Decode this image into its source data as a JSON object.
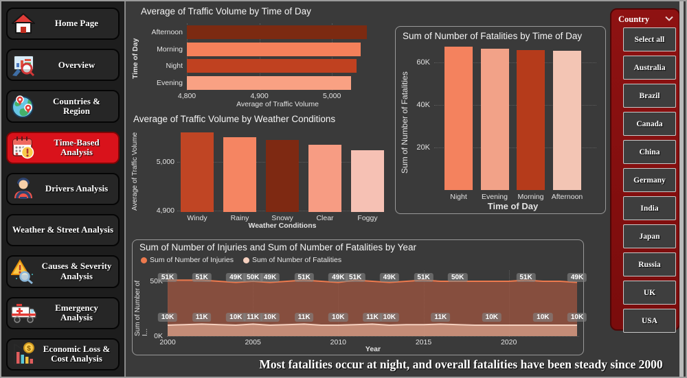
{
  "sidebar": {
    "items": [
      {
        "label": "Home Page",
        "icon": "home-icon",
        "active": false
      },
      {
        "label": "Overview",
        "icon": "overview-icon",
        "active": false
      },
      {
        "label": "Countries & Region",
        "icon": "globe-icon",
        "active": false
      },
      {
        "label": "Time-Based Analysis",
        "icon": "calendar-alert-icon",
        "active": true
      },
      {
        "label": "Drivers Analysis",
        "icon": "driver-icon",
        "active": false
      },
      {
        "label": "Weather & Street Analysis",
        "icon": null,
        "active": false
      },
      {
        "label": "Causes & Severity Analysis",
        "icon": "warning-search-icon",
        "active": false
      },
      {
        "label": "Emergency Analysis",
        "icon": "ambulance-icon",
        "active": false
      },
      {
        "label": "Economic Loss & Cost Analysis",
        "icon": "economic-icon",
        "active": false
      }
    ]
  },
  "slicer": {
    "header": "Country",
    "chevron_icon": "chevron-down-icon",
    "items": [
      "Select all",
      "Australia",
      "Brazil",
      "Canada",
      "China",
      "Germany",
      "India",
      "Japan",
      "Russia",
      "UK",
      "USA"
    ]
  },
  "annotation": "Most fatalities occur at night, and overall fatalities have been steady since 2000",
  "colors": {
    "active_nav": "#d9121b",
    "slicer_panel": "#7d0d0d",
    "panel_bg": "#3a3a3a",
    "sidebar_bg": "#1d1d1d"
  },
  "chart_data": [
    {
      "id": "traffic-by-time",
      "type": "bar",
      "orientation": "horizontal",
      "title": "Average of Traffic Volume by Time of Day",
      "categories": [
        "Afternoon",
        "Morning",
        "Night",
        "Evening"
      ],
      "values": [
        5048,
        5040,
        5034,
        5026
      ],
      "bar_colors": [
        "#7c2a11",
        "#f5805a",
        "#c04120",
        "#f9a183"
      ],
      "xlabel": "Average of Traffic Volume",
      "ylabel": "Time of Day",
      "xlim": [
        4800,
        5050
      ],
      "xticks": [
        4800,
        4900,
        5000
      ],
      "xtick_labels": [
        "4,800",
        "4,900",
        "5,000"
      ],
      "grid": true
    },
    {
      "id": "traffic-by-weather",
      "type": "bar",
      "orientation": "vertical",
      "title": "Average of Traffic Volume by Weather Conditions",
      "categories": [
        "Windy",
        "Rainy",
        "Snowy",
        "Clear",
        "Foggy"
      ],
      "values": [
        5060,
        5051,
        5045,
        5035,
        5024
      ],
      "bar_colors": [
        "#c04524",
        "#f58562",
        "#7e2912",
        "#f79c83",
        "#f6c1b4"
      ],
      "xlabel": "Weather Conditions",
      "ylabel": "Average of Traffic Volume",
      "ylim": [
        4897,
        5070
      ],
      "yticks": [
        4900,
        5000
      ],
      "ytick_labels": [
        "4,900",
        "5,000"
      ],
      "grid": true
    },
    {
      "id": "fatalities-by-time",
      "type": "bar",
      "orientation": "vertical",
      "title": "Sum of Number of Fatalities by Time of Day",
      "categories": [
        "Night",
        "Evening",
        "Morning",
        "Afternoon"
      ],
      "values": [
        67500,
        66300,
        65700,
        65400
      ],
      "bar_colors": [
        "#f4825e",
        "#f2a288",
        "#b53b1b",
        "#f3c5b4"
      ],
      "xlabel": "Time of Day",
      "ylabel": "Sum of Number of Fatalities",
      "ylim": [
        0,
        70000
      ],
      "yticks": [
        20000,
        40000,
        60000
      ],
      "ytick_labels": [
        "20K",
        "40K",
        "60K"
      ],
      "grid": true
    },
    {
      "id": "injuries-fatalities-by-year",
      "type": "area",
      "title": "Sum of Number of Injuries and Sum of Number of Fatalities by Year",
      "xlabel": "Year",
      "ylabel": "Sum of Number of I...",
      "x_start": 2000,
      "x_end": 2024,
      "xticks": [
        2000,
        2005,
        2010,
        2015,
        2020
      ],
      "ylim_k": [
        0,
        55
      ],
      "yticks_k": [
        0,
        50
      ],
      "ytick_labels": [
        "0K",
        "50K"
      ],
      "legend_position": "top",
      "series": [
        {
          "name": "Sum of Number of Injuries",
          "line_color": "#ed7a4e",
          "fill_color": "#a05540",
          "values_k": [
            51,
            51,
            51,
            50,
            49,
            50,
            49,
            50,
            51,
            50,
            49,
            51,
            50,
            49,
            50,
            51,
            50,
            50,
            50,
            50,
            50,
            51,
            50,
            50,
            49
          ],
          "point_labels": [
            {
              "year": 2000,
              "text": "51K"
            },
            {
              "year": 2002,
              "text": "51K"
            },
            {
              "year": 2004,
              "text": "49K"
            },
            {
              "year": 2005,
              "text": "50K"
            },
            {
              "year": 2006,
              "text": "49K"
            },
            {
              "year": 2008,
              "text": "51K"
            },
            {
              "year": 2010,
              "text": "49K"
            },
            {
              "year": 2011,
              "text": "51K"
            },
            {
              "year": 2013,
              "text": "49K"
            },
            {
              "year": 2015,
              "text": "51K"
            },
            {
              "year": 2017,
              "text": "50K"
            },
            {
              "year": 2021,
              "text": "51K"
            },
            {
              "year": 2024,
              "text": "49K"
            }
          ]
        },
        {
          "name": "Sum of Number of Fatalities",
          "line_color": "#f6d0bf",
          "fill_color": "#d8a18b",
          "values_k": [
            10,
            10.5,
            11,
            10.5,
            10,
            11,
            10,
            10.5,
            11,
            10,
            10,
            10.5,
            11,
            10,
            10.5,
            10.5,
            11,
            10.5,
            10,
            10,
            10,
            10,
            10,
            10,
            10
          ],
          "point_labels": [
            {
              "year": 2000,
              "text": "10K"
            },
            {
              "year": 2002,
              "text": "11K"
            },
            {
              "year": 2004,
              "text": "10K"
            },
            {
              "year": 2005,
              "text": "11K"
            },
            {
              "year": 2006,
              "text": "10K"
            },
            {
              "year": 2008,
              "text": "11K"
            },
            {
              "year": 2010,
              "text": "10K"
            },
            {
              "year": 2012,
              "text": "11K"
            },
            {
              "year": 2013,
              "text": "10K"
            },
            {
              "year": 2016,
              "text": "11K"
            },
            {
              "year": 2019,
              "text": "10K"
            },
            {
              "year": 2022,
              "text": "10K"
            },
            {
              "year": 2024,
              "text": "10K"
            }
          ]
        }
      ]
    }
  ]
}
